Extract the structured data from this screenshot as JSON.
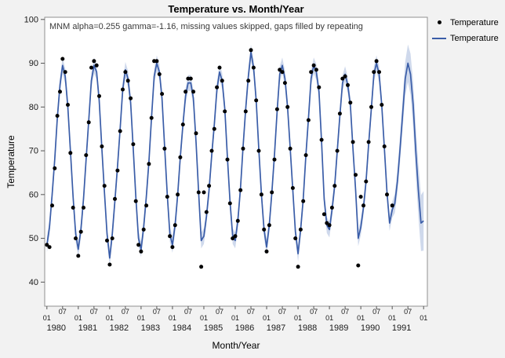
{
  "chart_data": {
    "type": "line",
    "title": "Temperature vs. Month/Year",
    "annotation": "MNM alpha=0.255 gamma=-1.16, missing values skipped, gaps filled by repeating",
    "xlabel": "Month/Year",
    "ylabel": "Temperature",
    "xlim": [
      1979.93,
      1992.12
    ],
    "ylim": [
      34.5,
      100.5
    ],
    "y_ticks": [
      40,
      50,
      60,
      70,
      80,
      90,
      100
    ],
    "x_month_ticks": [
      "01",
      "07"
    ],
    "years": [
      1980,
      1981,
      1982,
      1983,
      1984,
      1985,
      1986,
      1987,
      1988,
      1989,
      1990,
      1991
    ],
    "grid": false,
    "legend_position": "right-top",
    "legend": [
      {
        "label": "Temperature",
        "marker": "point"
      },
      {
        "label": "Temperature",
        "marker": "line"
      }
    ],
    "series": [
      {
        "name": "Temperature",
        "type": "scatter",
        "color": "#000000",
        "monthly": [
          {
            "year": 1980,
            "values": [
              48.5,
              48.0,
              57.5,
              66.0,
              78.0,
              83.5,
              91.0,
              88.0,
              80.5,
              69.5,
              57.0,
              50.0
            ]
          },
          {
            "year": 1981,
            "values": [
              46.0,
              51.5,
              57.0,
              69.0,
              76.5,
              89.0,
              90.5,
              89.5,
              82.5,
              71.0,
              62.0,
              49.5
            ]
          },
          {
            "year": 1982,
            "values": [
              44.0,
              50.0,
              59.0,
              65.5,
              74.5,
              84.0,
              88.0,
              86.0,
              82.0,
              71.5,
              58.5,
              48.5
            ]
          },
          {
            "year": 1983,
            "values": [
              47.0,
              52.0,
              57.5,
              67.0,
              77.5,
              90.5,
              90.5,
              87.5,
              83.0,
              70.5,
              59.5,
              50.5
            ]
          },
          {
            "year": 1984,
            "values": [
              48.0,
              53.0,
              60.0,
              68.5,
              76.0,
              83.5,
              86.5,
              86.5,
              83.5,
              74.0,
              60.5,
              43.5
            ]
          },
          {
            "year": 1985,
            "values": [
              60.5,
              56.0,
              62.0,
              70.0,
              75.0,
              84.5,
              89.0,
              86.0,
              79.0,
              68.0,
              58.0,
              50.0
            ]
          },
          {
            "year": 1986,
            "values": [
              50.5,
              54.0,
              61.0,
              70.5,
              79.0,
              86.0,
              93.0,
              89.0,
              81.5,
              70.0,
              60.0,
              52.0
            ]
          },
          {
            "year": 1987,
            "values": [
              47.0,
              53.0,
              60.5,
              68.0,
              79.5,
              88.5,
              88.0,
              85.5,
              80.0,
              70.5,
              61.5,
              50.0
            ]
          },
          {
            "year": 1988,
            "values": [
              43.5,
              52.0,
              58.5,
              69.0,
              77.0,
              88.0,
              89.5,
              88.5,
              84.5,
              72.5,
              55.5,
              53.5
            ]
          },
          {
            "year": 1989,
            "values": [
              53.0,
              57.0,
              62.0,
              70.0,
              78.5,
              86.5,
              87.0,
              85.0,
              81.0,
              72.0,
              64.5,
              43.8
            ]
          },
          {
            "year": 1990,
            "values": [
              59.5,
              57.5,
              63.0,
              72.0,
              80.0,
              88.0,
              90.5,
              88.0,
              80.5,
              71.0,
              60.0,
              null
            ]
          },
          {
            "year": 1991,
            "values": [
              57.5,
              null,
              null,
              null,
              null,
              null,
              null,
              null,
              null,
              null,
              null,
              null
            ]
          }
        ]
      },
      {
        "name": "Temperature",
        "type": "fitted-line",
        "color": "#3a5da8",
        "monthly": [
          {
            "year": 1980,
            "values": [
              48.5,
              52.5,
              60.0,
              68.0,
              77.5,
              85.0,
              89.5,
              87.0,
              80.0,
              70.0,
              59.5,
              51.0
            ]
          },
          {
            "year": 1981,
            "values": [
              47.5,
              52.0,
              59.0,
              68.0,
              77.0,
              86.0,
              89.5,
              88.0,
              81.5,
              70.5,
              60.5,
              51.0
            ]
          },
          {
            "year": 1982,
            "values": [
              45.5,
              51.0,
              58.5,
              66.5,
              75.0,
              84.0,
              88.5,
              86.5,
              81.0,
              70.5,
              59.5,
              50.0
            ]
          },
          {
            "year": 1983,
            "values": [
              47.5,
              52.5,
              59.5,
              67.5,
              77.5,
              87.0,
              90.0,
              88.0,
              82.0,
              71.0,
              60.0,
              51.0
            ]
          },
          {
            "year": 1984,
            "values": [
              48.5,
              53.0,
              60.0,
              68.5,
              76.0,
              82.5,
              85.5,
              85.5,
              82.0,
              72.0,
              60.5,
              49.5
            ]
          },
          {
            "year": 1985,
            "values": [
              50.5,
              55.0,
              61.0,
              69.0,
              76.0,
              84.0,
              88.0,
              86.0,
              79.5,
              68.5,
              58.5,
              50.5
            ]
          },
          {
            "year": 1986,
            "values": [
              49.5,
              54.0,
              61.5,
              71.0,
              79.5,
              87.0,
              92.5,
              89.0,
              81.5,
              70.5,
              60.0,
              52.0
            ]
          },
          {
            "year": 1987,
            "values": [
              48.0,
              53.0,
              60.5,
              69.0,
              79.0,
              87.5,
              89.5,
              86.5,
              80.0,
              70.5,
              61.0,
              51.5
            ]
          },
          {
            "year": 1988,
            "values": [
              46.5,
              52.0,
              59.0,
              69.0,
              77.5,
              86.5,
              89.5,
              88.0,
              83.5,
              72.0,
              59.0,
              53.0
            ]
          },
          {
            "year": 1989,
            "values": [
              52.0,
              56.5,
              62.0,
              70.0,
              78.0,
              85.5,
              87.5,
              85.0,
              80.5,
              70.5,
              61.0,
              50.0
            ]
          },
          {
            "year": 1990,
            "values": [
              52.5,
              57.0,
              63.0,
              71.5,
              79.5,
              87.5,
              90.0,
              87.5,
              80.5,
              70.5,
              60.5,
              53.5
            ]
          },
          {
            "year": 1991,
            "values": [
              56.5,
              58.0,
              63.0,
              70.5,
              78.5,
              86.5,
              90.0,
              87.5,
              80.5,
              70.0,
              61.0,
              53.5
            ]
          }
        ],
        "end_point": {
          "x": 1992.0,
          "y": 54.0
        },
        "confidence_band": {
          "color": "#9fb4d9",
          "opacity": 0.5,
          "halfwidth": 1.8,
          "forecast_start": 1991.0,
          "forecast_growth": 5.0
        }
      }
    ]
  }
}
